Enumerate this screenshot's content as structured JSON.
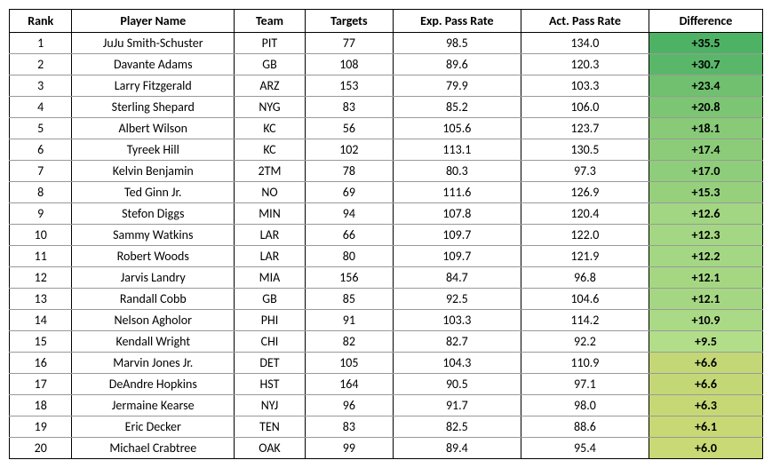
{
  "table": {
    "columns": [
      "Rank",
      "Player Name",
      "Team",
      "Targets",
      "Exp. Pass Rate",
      "Act. Pass Rate",
      "Difference"
    ],
    "rows": [
      {
        "rank": "1",
        "player": "JuJu Smith-Schuster",
        "team": "PIT",
        "targets": "77",
        "exp": "98.5",
        "act": "134.0",
        "diff": "+35.5",
        "diff_color": "#4eb265"
      },
      {
        "rank": "2",
        "player": "Davante Adams",
        "team": "GB",
        "targets": "108",
        "exp": "89.6",
        "act": "120.3",
        "diff": "+30.7",
        "diff_color": "#5ab769"
      },
      {
        "rank": "3",
        "player": "Larry Fitzgerald",
        "team": "ARZ",
        "targets": "153",
        "exp": "79.9",
        "act": "103.3",
        "diff": "+23.4",
        "diff_color": "#70c06f"
      },
      {
        "rank": "4",
        "player": "Sterling Shepard",
        "team": "NYG",
        "targets": "83",
        "exp": "85.2",
        "act": "106.0",
        "diff": "+20.8",
        "diff_color": "#7cc573"
      },
      {
        "rank": "5",
        "player": "Albert Wilson",
        "team": "KC",
        "targets": "56",
        "exp": "105.6",
        "act": "123.7",
        "diff": "+18.1",
        "diff_color": "#88ca77"
      },
      {
        "rank": "6",
        "player": "Tyreek Hill",
        "team": "KC",
        "targets": "102",
        "exp": "113.1",
        "act": "130.5",
        "diff": "+17.4",
        "diff_color": "#8ccc79"
      },
      {
        "rank": "7",
        "player": "Kelvin Benjamin",
        "team": "2TM",
        "targets": "78",
        "exp": "80.3",
        "act": "97.3",
        "diff": "+17.0",
        "diff_color": "#8ecd7a"
      },
      {
        "rank": "8",
        "player": "Ted Ginn Jr.",
        "team": "NO",
        "targets": "69",
        "exp": "111.6",
        "act": "126.9",
        "diff": "+15.3",
        "diff_color": "#96d07d"
      },
      {
        "rank": "9",
        "player": "Stefon Diggs",
        "team": "MIN",
        "targets": "94",
        "exp": "107.8",
        "act": "120.4",
        "diff": "+12.6",
        "diff_color": "#a2d682"
      },
      {
        "rank": "10",
        "player": "Sammy Watkins",
        "team": "LAR",
        "targets": "66",
        "exp": "109.7",
        "act": "122.0",
        "diff": "+12.3",
        "diff_color": "#a4d783"
      },
      {
        "rank": "11",
        "player": "Robert Woods",
        "team": "LAR",
        "targets": "80",
        "exp": "109.7",
        "act": "121.9",
        "diff": "+12.2",
        "diff_color": "#a4d783"
      },
      {
        "rank": "12",
        "player": "Jarvis Landry",
        "team": "MIA",
        "targets": "156",
        "exp": "84.7",
        "act": "96.8",
        "diff": "+12.1",
        "diff_color": "#a5d783"
      },
      {
        "rank": "13",
        "player": "Randall Cobb",
        "team": "GB",
        "targets": "85",
        "exp": "92.5",
        "act": "104.6",
        "diff": "+12.1",
        "diff_color": "#a5d783"
      },
      {
        "rank": "14",
        "player": "Nelson Agholor",
        "team": "PHI",
        "targets": "91",
        "exp": "103.3",
        "act": "114.2",
        "diff": "+10.9",
        "diff_color": "#abda86"
      },
      {
        "rank": "15",
        "player": "Kendall Wright",
        "team": "CHI",
        "targets": "82",
        "exp": "82.7",
        "act": "92.2",
        "diff": "+9.5",
        "diff_color": "#b2dd89"
      },
      {
        "rank": "16",
        "player": "Marvin Jones Jr.",
        "team": "DET",
        "targets": "105",
        "exp": "104.3",
        "act": "110.9",
        "diff": "+6.6",
        "diff_color": "#c4d777"
      },
      {
        "rank": "17",
        "player": "DeAndre Hopkins",
        "team": "HST",
        "targets": "164",
        "exp": "90.5",
        "act": "97.1",
        "diff": "+6.6",
        "diff_color": "#c4d777"
      },
      {
        "rank": "18",
        "player": "Jermaine Kearse",
        "team": "NYJ",
        "targets": "96",
        "exp": "91.7",
        "act": "98.0",
        "diff": "+6.3",
        "diff_color": "#c6d876"
      },
      {
        "rank": "19",
        "player": "Eric Decker",
        "team": "TEN",
        "targets": "83",
        "exp": "82.5",
        "act": "88.6",
        "diff": "+6.1",
        "diff_color": "#c7d875"
      },
      {
        "rank": "20",
        "player": "Michael Crabtree",
        "team": "OAK",
        "targets": "99",
        "exp": "89.4",
        "act": "95.4",
        "diff": "+6.0",
        "diff_color": "#c8d975"
      }
    ]
  }
}
